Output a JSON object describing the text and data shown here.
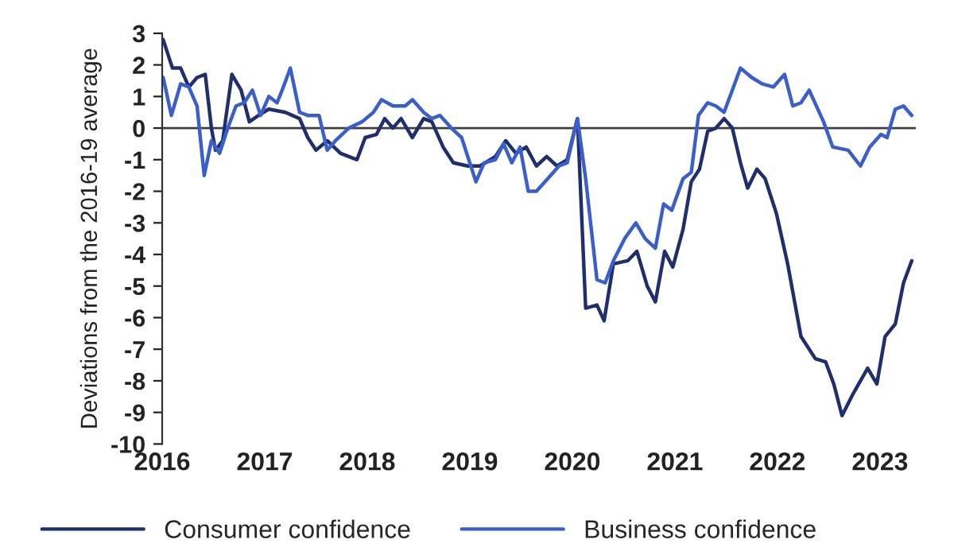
{
  "chart_data": {
    "type": "line",
    "ylabel": "Deviations from the 2016-19 average",
    "xlim": [
      2016,
      2023.35
    ],
    "xticks": [
      2016,
      2017,
      2018,
      2019,
      2020,
      2021,
      2022,
      2023
    ],
    "ylim": [
      -10,
      3
    ],
    "yticks": [
      -10,
      -9,
      -8,
      -7,
      -6,
      -5,
      -4,
      -3,
      -2,
      -1,
      0,
      1,
      2,
      3
    ],
    "ref_lines": [
      {
        "axis": "y",
        "value": 0,
        "color": "#404040"
      }
    ],
    "grid": false,
    "legend": "bottom",
    "marker": "none",
    "line_style": "solid",
    "series": [
      {
        "name": "Consumer confidence",
        "color": "#1f2f6e",
        "x": [
          2016.01,
          2016.1,
          2016.18,
          2016.26,
          2016.34,
          2016.42,
          2016.48,
          2016.52,
          2016.59,
          2016.68,
          2016.77,
          2016.85,
          2016.94,
          2017.04,
          2017.2,
          2017.34,
          2017.42,
          2017.5,
          2017.61,
          2017.74,
          2017.9,
          2017.98,
          2018.09,
          2018.17,
          2018.25,
          2018.33,
          2018.44,
          2018.55,
          2018.63,
          2018.74,
          2018.84,
          2018.98,
          2019.1,
          2019.25,
          2019.35,
          2019.45,
          2019.55,
          2019.65,
          2019.75,
          2019.85,
          2019.95,
          2020.05,
          2020.13,
          2020.24,
          2020.31,
          2020.4,
          2020.54,
          2020.63,
          2020.73,
          2020.81,
          2020.9,
          2020.98,
          2021.08,
          2021.16,
          2021.24,
          2021.32,
          2021.4,
          2021.48,
          2021.56,
          2021.64,
          2021.71,
          2021.8,
          2021.88,
          2021.99,
          2022.1,
          2022.23,
          2022.37,
          2022.47,
          2022.55,
          2022.63,
          2022.74,
          2022.88,
          2022.97,
          2023.05,
          2023.15,
          2023.23,
          2023.31
        ],
        "values": [
          2.8,
          1.9,
          1.9,
          1.3,
          1.6,
          1.7,
          0.0,
          -0.7,
          -0.4,
          1.7,
          1.2,
          0.2,
          0.4,
          0.6,
          0.5,
          0.3,
          -0.3,
          -0.7,
          -0.4,
          -0.8,
          -1.0,
          -0.3,
          -0.2,
          0.3,
          0.0,
          0.3,
          -0.3,
          0.3,
          0.2,
          -0.6,
          -1.1,
          -1.2,
          -1.2,
          -0.9,
          -0.4,
          -0.8,
          -0.6,
          -1.2,
          -0.9,
          -1.2,
          -1.0,
          0.3,
          -5.7,
          -5.6,
          -6.1,
          -4.3,
          -4.2,
          -3.9,
          -5.0,
          -5.5,
          -3.9,
          -4.4,
          -3.2,
          -1.7,
          -1.3,
          -0.1,
          0.0,
          0.3,
          0.0,
          -1.1,
          -1.9,
          -1.3,
          -1.6,
          -2.7,
          -4.3,
          -6.6,
          -7.3,
          -7.4,
          -8.1,
          -9.1,
          -8.4,
          -7.6,
          -8.1,
          -6.6,
          -6.2,
          -4.9,
          -4.2
        ]
      },
      {
        "name": "Business confidence",
        "color": "#3a5fcd",
        "x": [
          2016.01,
          2016.09,
          2016.18,
          2016.26,
          2016.34,
          2016.41,
          2016.48,
          2016.56,
          2016.64,
          2016.72,
          2016.8,
          2016.88,
          2016.96,
          2017.04,
          2017.12,
          2017.17,
          2017.25,
          2017.34,
          2017.42,
          2017.53,
          2017.61,
          2017.69,
          2017.82,
          2017.95,
          2018.06,
          2018.14,
          2018.25,
          2018.37,
          2018.44,
          2018.55,
          2018.63,
          2018.71,
          2018.82,
          2018.92,
          2019.06,
          2019.14,
          2019.25,
          2019.33,
          2019.41,
          2019.49,
          2019.57,
          2019.65,
          2019.76,
          2019.87,
          2019.95,
          2020.05,
          2020.13,
          2020.24,
          2020.32,
          2020.4,
          2020.51,
          2020.62,
          2020.71,
          2020.81,
          2020.89,
          2020.97,
          2021.08,
          2021.16,
          2021.23,
          2021.32,
          2021.4,
          2021.48,
          2021.56,
          2021.64,
          2021.75,
          2021.85,
          2021.96,
          2022.07,
          2022.15,
          2022.23,
          2022.31,
          2022.45,
          2022.54,
          2022.69,
          2022.81,
          2022.9,
          2023.01,
          2023.07,
          2023.15,
          2023.23,
          2023.31
        ],
        "values": [
          1.6,
          0.4,
          1.4,
          1.3,
          0.7,
          -1.5,
          -0.4,
          -0.8,
          0.0,
          0.7,
          0.8,
          1.2,
          0.4,
          1.0,
          0.8,
          1.2,
          1.9,
          0.5,
          0.4,
          0.4,
          -0.7,
          -0.4,
          0.0,
          0.2,
          0.5,
          0.9,
          0.7,
          0.7,
          0.9,
          0.5,
          0.3,
          0.4,
          0.0,
          -0.3,
          -1.7,
          -1.1,
          -1.0,
          -0.5,
          -1.1,
          -0.6,
          -2.0,
          -2.0,
          -1.6,
          -1.2,
          -1.1,
          0.3,
          -1.6,
          -4.8,
          -4.9,
          -4.2,
          -3.5,
          -3.0,
          -3.5,
          -3.8,
          -2.4,
          -2.6,
          -1.6,
          -1.4,
          0.4,
          0.8,
          0.7,
          0.5,
          1.2,
          1.9,
          1.6,
          1.4,
          1.3,
          1.7,
          0.7,
          0.8,
          1.2,
          0.2,
          -0.6,
          -0.7,
          -1.2,
          -0.6,
          -0.2,
          -0.3,
          0.6,
          0.7,
          0.4
        ]
      }
    ]
  }
}
